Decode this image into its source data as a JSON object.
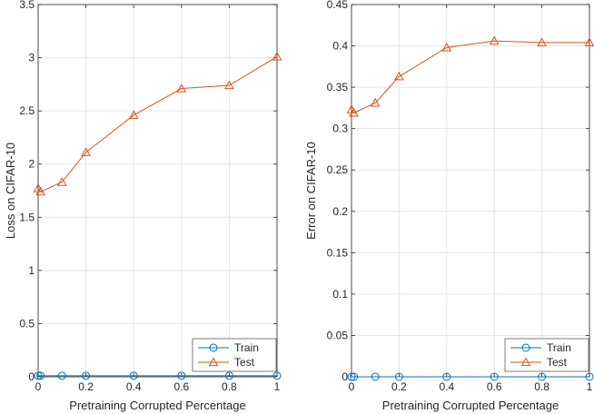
{
  "colors": {
    "train": "#0072BD",
    "test": "#D95319",
    "grid": "#e6e6e6",
    "axis": "#262626"
  },
  "chart_data": [
    {
      "type": "line",
      "xlabel": "Pretraining Corrupted Percentage",
      "ylabel": "Loss on CIFAR-10",
      "xlim": [
        0,
        1
      ],
      "ylim": [
        0,
        3.5
      ],
      "xticks": [
        0,
        0.2,
        0.4,
        0.6,
        0.8,
        1
      ],
      "xtick_labels": [
        "0",
        "0.2",
        "0.4",
        "0.6",
        "0.8",
        "1"
      ],
      "yticks": [
        0,
        0.5,
        1,
        1.5,
        2,
        2.5,
        3,
        3.5
      ],
      "ytick_labels": [
        "0",
        "0.5",
        "1",
        "1.5",
        "2",
        "2.5",
        "3",
        "3.5"
      ],
      "grid": true,
      "legend_position": "bottom-right",
      "series": [
        {
          "name": "Train",
          "marker": "circle",
          "color": "#0072BD",
          "x": [
            0,
            0.01,
            0.1,
            0.2,
            0.4,
            0.6,
            0.8,
            1
          ],
          "y": [
            0.01,
            0.01,
            0.01,
            0.01,
            0.01,
            0.01,
            0.01,
            0.01
          ]
        },
        {
          "name": "Test",
          "marker": "triangle",
          "color": "#D95319",
          "x": [
            0,
            0.01,
            0.1,
            0.2,
            0.4,
            0.6,
            0.8,
            1
          ],
          "y": [
            1.77,
            1.74,
            1.83,
            2.11,
            2.46,
            2.71,
            2.74,
            3.01
          ]
        }
      ]
    },
    {
      "type": "line",
      "xlabel": "Pretraining Corrupted Percentage",
      "ylabel": "Error on CIFAR-10",
      "xlim": [
        0,
        1
      ],
      "ylim": [
        0,
        0.45
      ],
      "xticks": [
        0,
        0.2,
        0.4,
        0.6,
        0.8,
        1
      ],
      "xtick_labels": [
        "0",
        "0.2",
        "0.4",
        "0.6",
        "0.8",
        "1"
      ],
      "yticks": [
        0,
        0.05,
        0.1,
        0.15,
        0.2,
        0.25,
        0.3,
        0.35,
        0.4,
        0.45
      ],
      "ytick_labels": [
        "0",
        "0.05",
        "0.1",
        "0.15",
        "0.2",
        "0.25",
        "0.3",
        "0.35",
        "0.4",
        "0.45"
      ],
      "grid": true,
      "legend_position": "bottom-right",
      "series": [
        {
          "name": "Train",
          "marker": "circle",
          "color": "#0072BD",
          "x": [
            0,
            0.01,
            0.1,
            0.2,
            0.4,
            0.6,
            0.8,
            1
          ],
          "y": [
            0,
            0,
            0,
            0,
            0,
            0,
            0,
            0
          ]
        },
        {
          "name": "Test",
          "marker": "triangle",
          "color": "#D95319",
          "x": [
            0,
            0.01,
            0.1,
            0.2,
            0.4,
            0.6,
            0.8,
            1
          ],
          "y": [
            0.323,
            0.319,
            0.331,
            0.363,
            0.398,
            0.406,
            0.404,
            0.404
          ]
        }
      ]
    }
  ]
}
